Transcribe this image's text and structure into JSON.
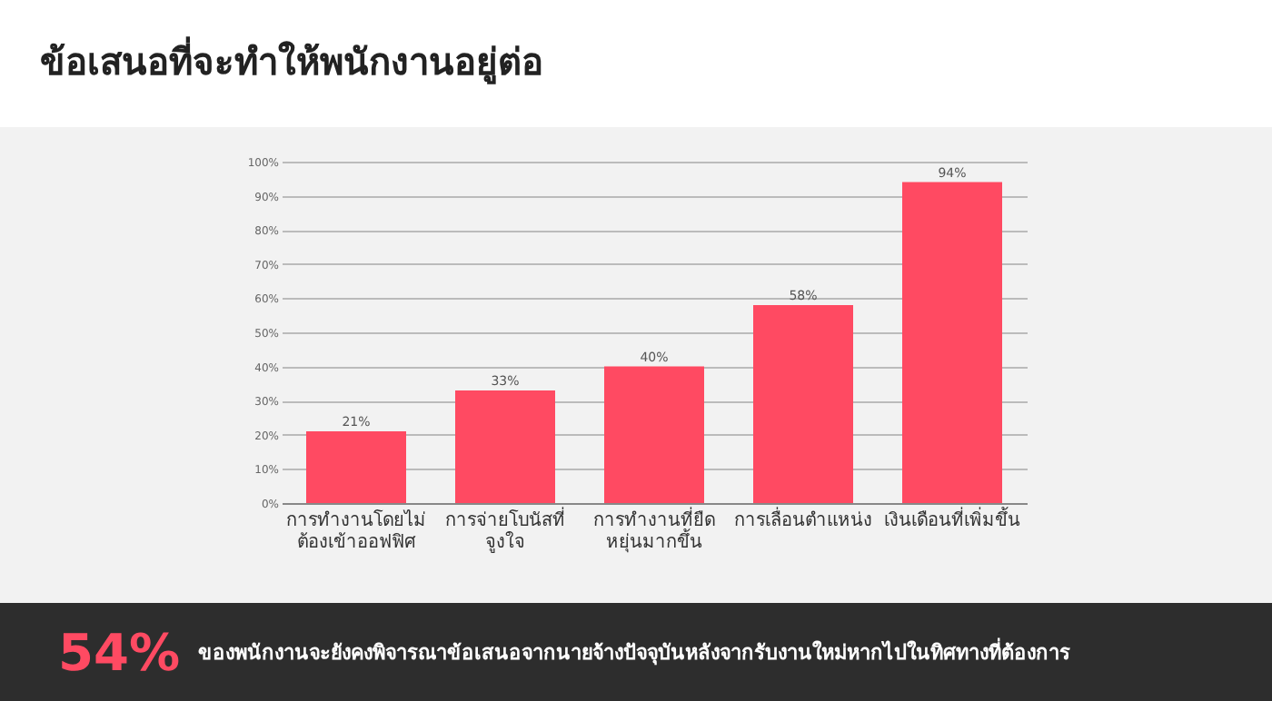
{
  "chart_data": {
    "type": "bar",
    "title": "ข้อเสนอที่จะทำให้พนักงานอยู่ต่อ",
    "categories": [
      "การทำงานโดยไม่\nต้องเข้าออฟฟิศ",
      "การจ่ายโบนัสที่\nจูงใจ",
      "การทำงานที่ยืด\nหยุ่นมากขึ้น",
      "การเลื่อนตำแหน่ง",
      "เงินเดือนที่เพิ่มขึ้น"
    ],
    "values": [
      21,
      33,
      40,
      58,
      94
    ],
    "color": "#ff4a62",
    "ylim": [
      0,
      100
    ],
    "yticks": [
      {
        "value": 0,
        "label": "0%"
      },
      {
        "value": 10,
        "label": "10%"
      },
      {
        "value": 20,
        "label": "20%"
      },
      {
        "value": 30,
        "label": "30%"
      },
      {
        "value": 40,
        "label": "40%"
      },
      {
        "value": 50,
        "label": "50%"
      },
      {
        "value": 60,
        "label": "60%"
      },
      {
        "value": 70,
        "label": "70%"
      },
      {
        "value": 80,
        "label": "80%"
      },
      {
        "value": 90,
        "label": "90%"
      },
      {
        "value": 100,
        "label": "100%"
      }
    ],
    "value_labels": [
      "21%",
      "33%",
      "40%",
      "58%",
      "94%"
    ],
    "grid": "y",
    "annotations": [
      "54%",
      "ของพนักงานจะยังคงพิจารณาข้อเสนอจากนายจ้างปัจจุบันหลังจากรับงานใหม่หากไปในทิศทางที่ต้องการ"
    ]
  }
}
